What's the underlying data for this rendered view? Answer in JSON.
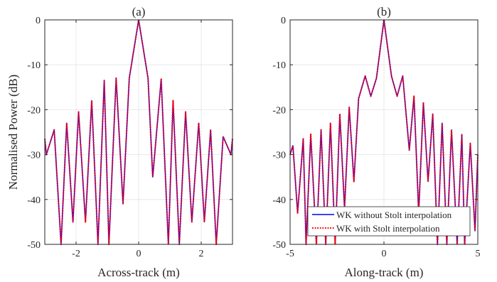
{
  "figure": {
    "ylabel": "Normalised Power (dB)"
  },
  "legend": {
    "placement": "bottom-right of panel (b)",
    "entries": [
      {
        "label": "WK without Stolt interpolation",
        "color": "#0000ff",
        "style": "solid"
      },
      {
        "label": "WK with Stolt interpolation",
        "color": "#ff0000",
        "style": "dotted"
      }
    ]
  },
  "chart_data": [
    {
      "type": "line",
      "title": "(a)",
      "xlabel": "Across-track (m)",
      "ylabel": "Normalised Power (dB)",
      "xlim": [
        -3,
        3
      ],
      "ylim": [
        -50,
        0
      ],
      "xticks": [
        -2,
        0,
        2
      ],
      "xtick_labels": [
        "-2",
        "0",
        "2"
      ],
      "yticks": [
        -50,
        -40,
        -30,
        -20,
        -10,
        0
      ],
      "ytick_labels": [
        "-50",
        "-40",
        "-30",
        "-20",
        "-10",
        "0"
      ],
      "grid": true,
      "series": [
        {
          "name": "WK without Stolt interpolation",
          "x": [
            -3.0,
            -2.95,
            -2.7,
            -2.48,
            -2.3,
            -2.1,
            -1.92,
            -1.7,
            -1.5,
            -1.3,
            -1.1,
            -0.95,
            -0.72,
            -0.5,
            -0.3,
            0.0,
            0.3,
            0.45,
            0.72,
            0.95,
            1.1,
            1.3,
            1.5,
            1.7,
            1.92,
            2.1,
            2.3,
            2.48,
            2.7,
            2.95,
            3.0
          ],
          "y": [
            -26.5,
            -30,
            -24.5,
            -50,
            -23,
            -45,
            -20.5,
            -45,
            -18,
            -50,
            -13.5,
            -50,
            -13,
            -41,
            -13,
            0,
            -13,
            -35,
            -13.2,
            -50,
            -18,
            -50,
            -20.5,
            -45,
            -23,
            -45,
            -24.5,
            -50,
            -26,
            -30,
            -26.5
          ]
        },
        {
          "name": "WK with Stolt interpolation",
          "x": [
            -3.0,
            -2.95,
            -2.7,
            -2.48,
            -2.3,
            -2.1,
            -1.92,
            -1.7,
            -1.5,
            -1.3,
            -1.1,
            -0.95,
            -0.72,
            -0.5,
            -0.3,
            0.0,
            0.3,
            0.45,
            0.72,
            0.95,
            1.1,
            1.3,
            1.5,
            1.7,
            1.92,
            2.1,
            2.3,
            2.48,
            2.7,
            2.95,
            3.0
          ],
          "y": [
            -26.5,
            -30,
            -24.5,
            -50,
            -23,
            -45,
            -20.5,
            -45,
            -18,
            -50,
            -13.5,
            -50,
            -13,
            -41,
            -13,
            0,
            -13,
            -35,
            -13.2,
            -50,
            -18,
            -50,
            -20.5,
            -45,
            -23,
            -45,
            -24.5,
            -50,
            -26,
            -30,
            -26.5
          ]
        }
      ]
    },
    {
      "type": "line",
      "title": "(b)",
      "xlabel": "Along-track (m)",
      "ylabel": "",
      "xlim": [
        -5,
        5
      ],
      "ylim": [
        -50,
        0
      ],
      "xticks": [
        -5,
        0,
        5
      ],
      "xtick_labels": [
        "-5",
        "0",
        "5"
      ],
      "yticks": [
        -50,
        -40,
        -30,
        -20,
        -10,
        0
      ],
      "ytick_labels": [
        "-50",
        "-40",
        "-30",
        "-20",
        "-10",
        "0"
      ],
      "grid": true,
      "series": [
        {
          "name": "WK without Stolt interpolation",
          "x": [
            -5.0,
            -4.85,
            -4.6,
            -4.3,
            -4.15,
            -3.9,
            -3.6,
            -3.35,
            -3.1,
            -2.85,
            -2.6,
            -2.35,
            -2.1,
            -1.85,
            -1.6,
            -1.35,
            -1.0,
            -0.7,
            -0.4,
            0.0,
            0.4,
            0.7,
            1.0,
            1.35,
            1.6,
            1.85,
            2.1,
            2.35,
            2.6,
            2.85,
            3.1,
            3.35,
            3.6,
            3.9,
            4.15,
            4.3,
            4.6,
            4.85,
            5.0
          ],
          "y": [
            -30,
            -28,
            -43,
            -26.5,
            -50,
            -25.5,
            -50,
            -24.5,
            -50,
            -23,
            -50,
            -21,
            -42,
            -19.5,
            -36,
            -17.5,
            -12.5,
            -17,
            -13,
            0,
            -12.5,
            -17,
            -12.5,
            -29,
            -17,
            -43,
            -18.5,
            -36,
            -21,
            -50,
            -23,
            -50,
            -24.5,
            -50,
            -25.5,
            -50,
            -27.5,
            -47,
            -30
          ]
        },
        {
          "name": "WK with Stolt interpolation",
          "x": [
            -5.0,
            -4.85,
            -4.6,
            -4.3,
            -4.15,
            -3.9,
            -3.6,
            -3.35,
            -3.1,
            -2.85,
            -2.6,
            -2.35,
            -2.1,
            -1.85,
            -1.6,
            -1.35,
            -1.0,
            -0.7,
            -0.4,
            0.0,
            0.4,
            0.7,
            1.0,
            1.35,
            1.6,
            1.85,
            2.1,
            2.35,
            2.6,
            2.85,
            3.1,
            3.35,
            3.6,
            3.9,
            4.15,
            4.3,
            4.6,
            4.85,
            5.0
          ],
          "y": [
            -30,
            -28,
            -43,
            -26.5,
            -50,
            -25.5,
            -50,
            -24.5,
            -50,
            -23,
            -50,
            -21,
            -42,
            -19.5,
            -36,
            -17.5,
            -12.5,
            -17,
            -13,
            0,
            -12.5,
            -17,
            -12.5,
            -29,
            -17,
            -43,
            -18.5,
            -36,
            -21,
            -50,
            -23,
            -50,
            -24.5,
            -50,
            -25.5,
            -50,
            -27.5,
            -47,
            -30
          ]
        }
      ]
    }
  ]
}
